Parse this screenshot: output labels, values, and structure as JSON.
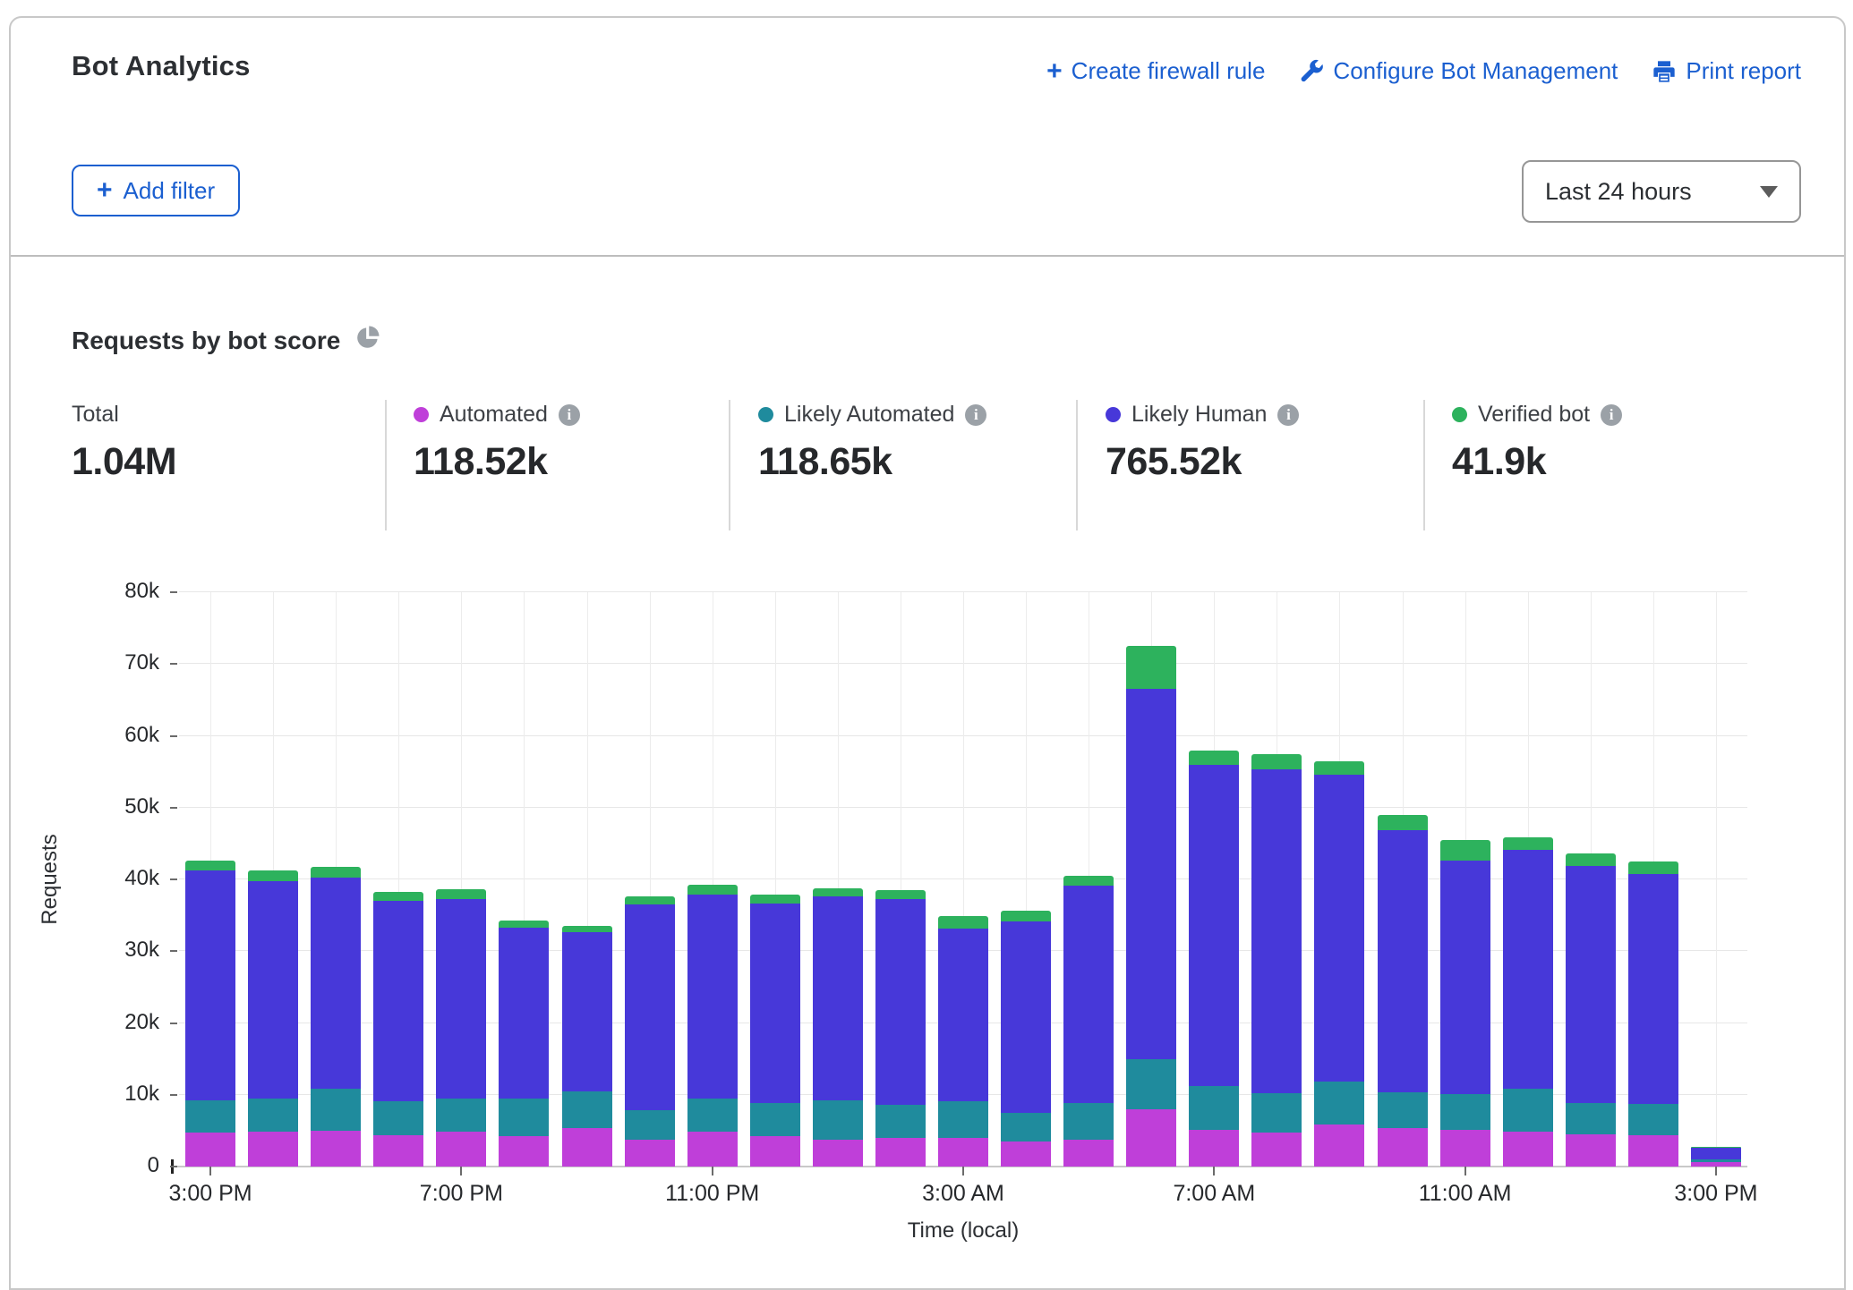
{
  "header": {
    "title": "Bot Analytics",
    "actions": [
      {
        "label": "Create firewall rule",
        "icon": "plus-icon"
      },
      {
        "label": "Configure Bot Management",
        "icon": "wrench-icon"
      },
      {
        "label": "Print report",
        "icon": "printer-icon"
      }
    ],
    "add_filter_label": "Add filter",
    "time_range_value": "Last 24 hours"
  },
  "section": {
    "title": "Requests by bot score",
    "icon": "pie-chart-icon"
  },
  "stats": [
    {
      "label": "Total",
      "value": "1.04M",
      "color": null,
      "has_info": false
    },
    {
      "label": "Automated",
      "value": "118.52k",
      "color": "#bf3fd9",
      "has_info": true
    },
    {
      "label": "Likely Automated",
      "value": "118.65k",
      "color": "#1f8b9d",
      "has_info": true
    },
    {
      "label": "Likely Human",
      "value": "765.52k",
      "color": "#4738d9",
      "has_info": true
    },
    {
      "label": "Verified bot",
      "value": "41.9k",
      "color": "#2db25d",
      "has_info": true
    }
  ],
  "chart_data": {
    "type": "bar",
    "stacked": true,
    "title": "Requests by bot score",
    "xlabel": "Time (local)",
    "ylabel": "Requests",
    "ylim": [
      0,
      80000
    ],
    "grid": true,
    "ytick_labels": [
      "0",
      "10k",
      "20k",
      "30k",
      "40k",
      "50k",
      "60k",
      "70k",
      "80k"
    ],
    "xtick_indices": [
      0,
      4,
      8,
      12,
      16,
      20,
      24
    ],
    "categories": [
      "3:00 PM",
      "4:00 PM",
      "5:00 PM",
      "6:00 PM",
      "7:00 PM",
      "8:00 PM",
      "9:00 PM",
      "10:00 PM",
      "11:00 PM",
      "12:00 AM",
      "1:00 AM",
      "2:00 AM",
      "3:00 AM",
      "4:00 AM",
      "5:00 AM",
      "6:00 AM",
      "7:00 AM",
      "8:00 AM",
      "9:00 AM",
      "10:00 AM",
      "11:00 AM",
      "12:00 PM",
      "1:00 PM",
      "2:00 PM",
      "3:00 PM"
    ],
    "series": [
      {
        "name": "Automated",
        "color": "#bf3fd9",
        "values": [
          4700,
          4800,
          5000,
          4400,
          4800,
          4200,
          5300,
          3700,
          4900,
          4300,
          3800,
          4000,
          4000,
          3500,
          3700,
          8000,
          5100,
          4700,
          5900,
          5300,
          5100,
          4900,
          4500,
          4400,
          600
        ]
      },
      {
        "name": "Likely Automated",
        "color": "#1f8b9d",
        "values": [
          4500,
          4700,
          5900,
          4700,
          4700,
          5300,
          5200,
          4200,
          4600,
          4500,
          5400,
          4600,
          5100,
          4000,
          5200,
          7000,
          6100,
          5500,
          6000,
          5100,
          5000,
          5900,
          4400,
          4300,
          400
        ]
      },
      {
        "name": "Likely Human",
        "color": "#4738d9",
        "values": [
          32100,
          30300,
          29300,
          27900,
          27800,
          23800,
          22100,
          28600,
          28400,
          27900,
          28400,
          28700,
          24000,
          26700,
          30200,
          51500,
          44800,
          45100,
          42700,
          36500,
          32500,
          33300,
          33000,
          32000,
          1600
        ]
      },
      {
        "name": "Verified bot",
        "color": "#2db25d",
        "values": [
          1300,
          1400,
          1500,
          1300,
          1300,
          1000,
          900,
          1100,
          1300,
          1200,
          1200,
          1200,
          1800,
          1500,
          1400,
          6000,
          1900,
          2100,
          1900,
          2100,
          2900,
          1700,
          1700,
          1800,
          100
        ]
      }
    ],
    "legend_position": "top"
  }
}
